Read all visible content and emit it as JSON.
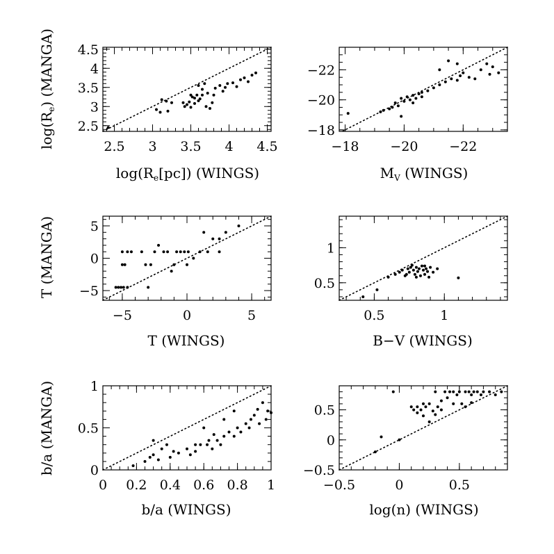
{
  "figure": {
    "background": "#ffffff",
    "ink": "#000000"
  },
  "chart_data": [
    {
      "type": "scatter",
      "id": "re",
      "xlabel": "log(Re[pc]) (WINGS)",
      "ylabel": "log(Re) (MANGA)",
      "xlim": [
        2.35,
        4.55
      ],
      "ylim": [
        2.35,
        4.55
      ],
      "xticks": [
        2.5,
        3,
        3.5,
        4,
        4.5
      ],
      "xtick_labels": [
        "2.5",
        "3",
        "3.5",
        "4",
        "4.5"
      ],
      "yticks": [
        2.5,
        3,
        3.5,
        4,
        4.5
      ],
      "ytick_labels": [
        "2.5",
        "3",
        "3.5",
        "4",
        "4.5"
      ],
      "x_minor": 0.1,
      "y_minor": 0.1,
      "reversed_x": false,
      "reversed_y": false,
      "reference_line": "y = x",
      "points": [
        [
          2.42,
          2.45
        ],
        [
          3.05,
          2.92
        ],
        [
          3.1,
          2.85
        ],
        [
          3.12,
          3.18
        ],
        [
          3.18,
          3.14
        ],
        [
          3.2,
          2.88
        ],
        [
          3.25,
          3.1
        ],
        [
          3.42,
          3.0
        ],
        [
          3.45,
          3.05
        ],
        [
          3.48,
          3.12
        ],
        [
          3.5,
          2.98
        ],
        [
          3.52,
          3.25
        ],
        [
          3.55,
          3.08
        ],
        [
          3.58,
          3.3
        ],
        [
          3.6,
          3.55
        ],
        [
          3.62,
          3.2
        ],
        [
          3.65,
          3.45
        ],
        [
          3.68,
          3.6
        ],
        [
          3.7,
          3.0
        ],
        [
          3.72,
          3.35
        ],
        [
          3.75,
          2.95
        ],
        [
          3.78,
          3.1
        ],
        [
          3.8,
          3.3
        ],
        [
          3.82,
          3.48
        ],
        [
          3.88,
          3.55
        ],
        [
          3.92,
          3.4
        ],
        [
          3.95,
          3.5
        ],
        [
          3.98,
          3.6
        ],
        [
          4.05,
          3.62
        ],
        [
          4.1,
          3.52
        ],
        [
          4.15,
          3.7
        ],
        [
          4.2,
          3.75
        ],
        [
          4.25,
          3.65
        ],
        [
          4.3,
          3.82
        ],
        [
          4.35,
          3.88
        ],
        [
          3.5,
          3.3
        ],
        [
          3.6,
          3.15
        ],
        [
          3.4,
          3.1
        ],
        [
          3.55,
          3.22
        ],
        [
          3.65,
          3.3
        ]
      ]
    },
    {
      "type": "scatter",
      "id": "mv",
      "xlabel": "MV (WINGS)",
      "ylabel": "",
      "xlim": [
        -17.8,
        -23.5
      ],
      "ylim": [
        -17.9,
        -23.5
      ],
      "xticks": [
        -18,
        -20,
        -22
      ],
      "xtick_labels": [
        "−18",
        "−20",
        "−22"
      ],
      "yticks": [
        -18,
        -20,
        -22
      ],
      "ytick_labels": [
        "−18",
        "−20",
        "−22"
      ],
      "x_minor": 0.5,
      "y_minor": 0.5,
      "reversed_x": true,
      "reversed_y": true,
      "reference_line": "y = x",
      "points": [
        [
          -18.1,
          -19.1
        ],
        [
          -19.2,
          -19.2
        ],
        [
          -19.3,
          -19.3
        ],
        [
          -19.5,
          -19.4
        ],
        [
          -19.6,
          -19.5
        ],
        [
          -19.7,
          -19.8
        ],
        [
          -19.8,
          -19.6
        ],
        [
          -19.9,
          -20.1
        ],
        [
          -20.0,
          -19.9
        ],
        [
          -20.1,
          -20.2
        ],
        [
          -20.2,
          -20.0
        ],
        [
          -20.3,
          -20.3
        ],
        [
          -20.4,
          -20.1
        ],
        [
          -20.5,
          -20.4
        ],
        [
          -20.3,
          -19.8
        ],
        [
          -20.6,
          -20.5
        ],
        [
          -20.8,
          -20.6
        ],
        [
          -21.0,
          -20.8
        ],
        [
          -21.2,
          -21.0
        ],
        [
          -21.4,
          -21.2
        ],
        [
          -21.6,
          -21.4
        ],
        [
          -21.8,
          -21.3
        ],
        [
          -21.9,
          -21.6
        ],
        [
          -22.0,
          -21.8
        ],
        [
          -22.2,
          -21.5
        ],
        [
          -22.4,
          -21.4
        ],
        [
          -22.6,
          -22.0
        ],
        [
          -22.8,
          -22.4
        ],
        [
          -23.0,
          -22.2
        ],
        [
          -23.2,
          -21.8
        ],
        [
          -21.2,
          -22.0
        ],
        [
          -21.5,
          -22.6
        ],
        [
          -21.8,
          -22.4
        ],
        [
          -19.9,
          -18.9
        ],
        [
          -22.9,
          -21.7
        ],
        [
          -20.6,
          -20.2
        ]
      ]
    },
    {
      "type": "scatter",
      "id": "t",
      "xlabel": "T (WINGS)",
      "ylabel": "T (MANGA)",
      "xlim": [
        -6.5,
        6.5
      ],
      "ylim": [
        -6.5,
        6.5
      ],
      "xticks": [
        -5,
        0,
        5
      ],
      "xtick_labels": [
        "−5",
        "0",
        "5"
      ],
      "yticks": [
        -5,
        0,
        5
      ],
      "ytick_labels": [
        "−5",
        "0",
        "5"
      ],
      "x_minor": 1,
      "y_minor": 1,
      "reversed_x": false,
      "reversed_y": false,
      "reference_line": "y = x",
      "points": [
        [
          -5.5,
          -4.5
        ],
        [
          -5.3,
          -4.5
        ],
        [
          -5.1,
          -4.5
        ],
        [
          -4.9,
          -4.5
        ],
        [
          -4.6,
          -4.5
        ],
        [
          -5.0,
          -1.0
        ],
        [
          -4.8,
          -1.0
        ],
        [
          -5.0,
          1.0
        ],
        [
          -4.6,
          1.0
        ],
        [
          -4.3,
          1.0
        ],
        [
          -3.5,
          1.0
        ],
        [
          -3.2,
          -1.0
        ],
        [
          -2.8,
          -1.0
        ],
        [
          -2.5,
          1.0
        ],
        [
          -2.2,
          2.0
        ],
        [
          -1.8,
          1.0
        ],
        [
          -1.5,
          1.0
        ],
        [
          -1.2,
          -2.0
        ],
        [
          -0.8,
          1.0
        ],
        [
          -0.5,
          1.0
        ],
        [
          -0.2,
          1.0
        ],
        [
          0.1,
          1.0
        ],
        [
          0.5,
          0.0
        ],
        [
          1.0,
          1.0
        ],
        [
          1.3,
          4.0
        ],
        [
          1.6,
          1.0
        ],
        [
          2.0,
          3.0
        ],
        [
          2.5,
          1.0
        ],
        [
          3.0,
          4.0
        ],
        [
          4.0,
          5.0
        ],
        [
          -3.0,
          -4.5
        ],
        [
          -1.0,
          -1.0
        ],
        [
          0.0,
          -1.0
        ],
        [
          2.5,
          3.0
        ]
      ]
    },
    {
      "type": "scatter",
      "id": "bv",
      "xlabel": "B−V (WINGS)",
      "ylabel": "",
      "xlim": [
        0.25,
        1.45
      ],
      "ylim": [
        0.25,
        1.45
      ],
      "xticks": [
        0.5,
        1
      ],
      "xtick_labels": [
        "0.5",
        "1"
      ],
      "yticks": [
        0.5,
        1
      ],
      "ytick_labels": [
        "0.5",
        "1"
      ],
      "x_minor": 0.1,
      "y_minor": 0.1,
      "reversed_x": false,
      "reversed_y": false,
      "reference_line": "y = x",
      "points": [
        [
          0.42,
          0.3
        ],
        [
          0.52,
          0.4
        ],
        [
          0.6,
          0.58
        ],
        [
          0.65,
          0.62
        ],
        [
          0.68,
          0.65
        ],
        [
          0.7,
          0.68
        ],
        [
          0.72,
          0.6
        ],
        [
          0.74,
          0.7
        ],
        [
          0.75,
          0.65
        ],
        [
          0.76,
          0.72
        ],
        [
          0.78,
          0.68
        ],
        [
          0.79,
          0.62
        ],
        [
          0.8,
          0.72
        ],
        [
          0.81,
          0.66
        ],
        [
          0.82,
          0.7
        ],
        [
          0.83,
          0.6
        ],
        [
          0.84,
          0.74
        ],
        [
          0.85,
          0.68
        ],
        [
          0.86,
          0.62
        ],
        [
          0.87,
          0.7
        ],
        [
          0.88,
          0.66
        ],
        [
          0.89,
          0.58
        ],
        [
          0.9,
          0.72
        ],
        [
          0.92,
          0.65
        ],
        [
          0.95,
          0.7
        ],
        [
          1.1,
          0.57
        ],
        [
          0.77,
          0.75
        ],
        [
          0.73,
          0.62
        ],
        [
          0.8,
          0.58
        ],
        [
          0.86,
          0.74
        ]
      ]
    },
    {
      "type": "scatter",
      "id": "ba",
      "xlabel": "b/a (WINGS)",
      "ylabel": "b/a (MANGA)",
      "xlim": [
        0,
        1
      ],
      "ylim": [
        0,
        1
      ],
      "xticks": [
        0,
        0.2,
        0.4,
        0.6,
        0.8,
        1
      ],
      "xtick_labels": [
        "0",
        "0.2",
        "0.4",
        "0.6",
        "0.8",
        "1"
      ],
      "yticks": [
        0,
        0.5,
        1
      ],
      "ytick_labels": [
        "0",
        "0.5",
        "1"
      ],
      "x_minor": 0.05,
      "y_minor": 0.1,
      "reversed_x": false,
      "reversed_y": false,
      "reference_line": "y = x",
      "points": [
        [
          0.18,
          0.05
        ],
        [
          0.25,
          0.1
        ],
        [
          0.28,
          0.15
        ],
        [
          0.3,
          0.18
        ],
        [
          0.33,
          0.12
        ],
        [
          0.35,
          0.25
        ],
        [
          0.38,
          0.3
        ],
        [
          0.4,
          0.15
        ],
        [
          0.45,
          0.2
        ],
        [
          0.5,
          0.25
        ],
        [
          0.52,
          0.18
        ],
        [
          0.55,
          0.22
        ],
        [
          0.58,
          0.3
        ],
        [
          0.6,
          0.5
        ],
        [
          0.62,
          0.3
        ],
        [
          0.65,
          0.25
        ],
        [
          0.68,
          0.35
        ],
        [
          0.7,
          0.3
        ],
        [
          0.72,
          0.4
        ],
        [
          0.75,
          0.45
        ],
        [
          0.78,
          0.4
        ],
        [
          0.8,
          0.5
        ],
        [
          0.82,
          0.45
        ],
        [
          0.85,
          0.55
        ],
        [
          0.88,
          0.6
        ],
        [
          0.9,
          0.65
        ],
        [
          0.92,
          0.72
        ],
        [
          0.95,
          0.8
        ],
        [
          0.98,
          0.7
        ],
        [
          1.0,
          0.68
        ],
        [
          0.97,
          0.6
        ],
        [
          0.93,
          0.55
        ],
        [
          0.87,
          0.5
        ],
        [
          0.78,
          0.7
        ],
        [
          0.72,
          0.6
        ],
        [
          0.63,
          0.35
        ],
        [
          0.55,
          0.3
        ],
        [
          0.3,
          0.35
        ],
        [
          0.42,
          0.22
        ],
        [
          0.66,
          0.42
        ]
      ]
    },
    {
      "type": "scatter",
      "id": "n",
      "xlabel": "log(n) (WINGS)",
      "ylabel": "",
      "xlim": [
        -0.5,
        0.9
      ],
      "ylim": [
        -0.5,
        0.9
      ],
      "xticks": [
        -0.5,
        0,
        0.5
      ],
      "xtick_labels": [
        "−0.5",
        "0",
        "0.5"
      ],
      "yticks": [
        -0.5,
        0,
        0.5
      ],
      "ytick_labels": [
        "−0.5",
        "0",
        "0.5"
      ],
      "x_minor": 0.1,
      "y_minor": 0.1,
      "reversed_x": false,
      "reversed_y": false,
      "reference_line": "y = x",
      "points": [
        [
          -0.2,
          -0.2
        ],
        [
          -0.15,
          0.05
        ],
        [
          -0.05,
          0.8
        ],
        [
          0.0,
          0.0
        ],
        [
          0.1,
          0.55
        ],
        [
          0.12,
          0.5
        ],
        [
          0.15,
          0.45
        ],
        [
          0.18,
          0.5
        ],
        [
          0.2,
          0.4
        ],
        [
          0.22,
          0.55
        ],
        [
          0.25,
          0.6
        ],
        [
          0.28,
          0.48
        ],
        [
          0.3,
          0.42
        ],
        [
          0.32,
          0.55
        ],
        [
          0.35,
          0.65
        ],
        [
          0.38,
          0.8
        ],
        [
          0.4,
          0.7
        ],
        [
          0.42,
          0.8
        ],
        [
          0.45,
          0.6
        ],
        [
          0.48,
          0.75
        ],
        [
          0.5,
          0.8
        ],
        [
          0.52,
          0.6
        ],
        [
          0.55,
          0.55
        ],
        [
          0.58,
          0.8
        ],
        [
          0.6,
          0.75
        ],
        [
          0.62,
          0.8
        ],
        [
          0.65,
          0.8
        ],
        [
          0.68,
          0.75
        ],
        [
          0.7,
          0.8
        ],
        [
          0.75,
          0.8
        ],
        [
          0.8,
          0.75
        ],
        [
          0.85,
          0.8
        ],
        [
          0.3,
          0.8
        ],
        [
          0.25,
          0.3
        ],
        [
          0.15,
          0.55
        ],
        [
          0.55,
          0.8
        ],
        [
          0.45,
          0.8
        ],
        [
          0.35,
          0.5
        ],
        [
          0.2,
          0.6
        ],
        [
          0.6,
          0.62
        ]
      ]
    }
  ]
}
